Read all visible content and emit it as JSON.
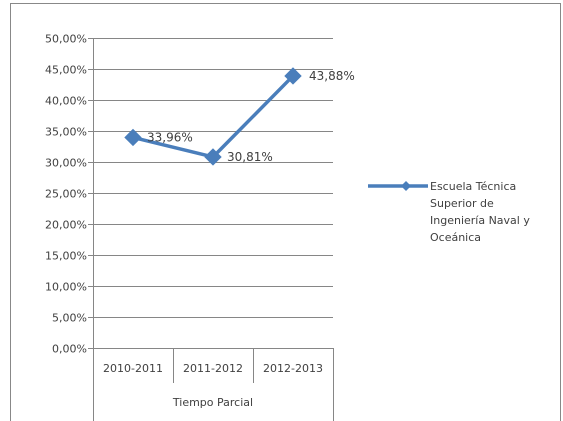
{
  "chart_data": {
    "type": "line",
    "group_label": "Tiempo Parcial",
    "categories": [
      "2010-2011",
      "2011-2012",
      "2012-2013"
    ],
    "series": [
      {
        "name": "Escuela Técnica Superior de Ingeniería Naval y Oceánica",
        "name_lines": [
          "Escuela Técnica",
          "Superior de",
          "Ingeniería Naval y",
          "Oceánica"
        ],
        "values": [
          33.96,
          30.81,
          43.88
        ],
        "labels": [
          "33,96%",
          "30,81%",
          "43,88%"
        ],
        "color": "#4a7ebb"
      }
    ],
    "y_ticks": [
      "0,00%",
      "5,00%",
      "10,00%",
      "15,00%",
      "20,00%",
      "25,00%",
      "30,00%",
      "35,00%",
      "40,00%",
      "45,00%",
      "50,00%"
    ],
    "ylim": [
      0,
      50
    ],
    "y_step": 5,
    "grid": true,
    "legend_position": "right",
    "colors": {
      "border": "#888888",
      "grid": "#868686",
      "axis": "#868686"
    }
  }
}
